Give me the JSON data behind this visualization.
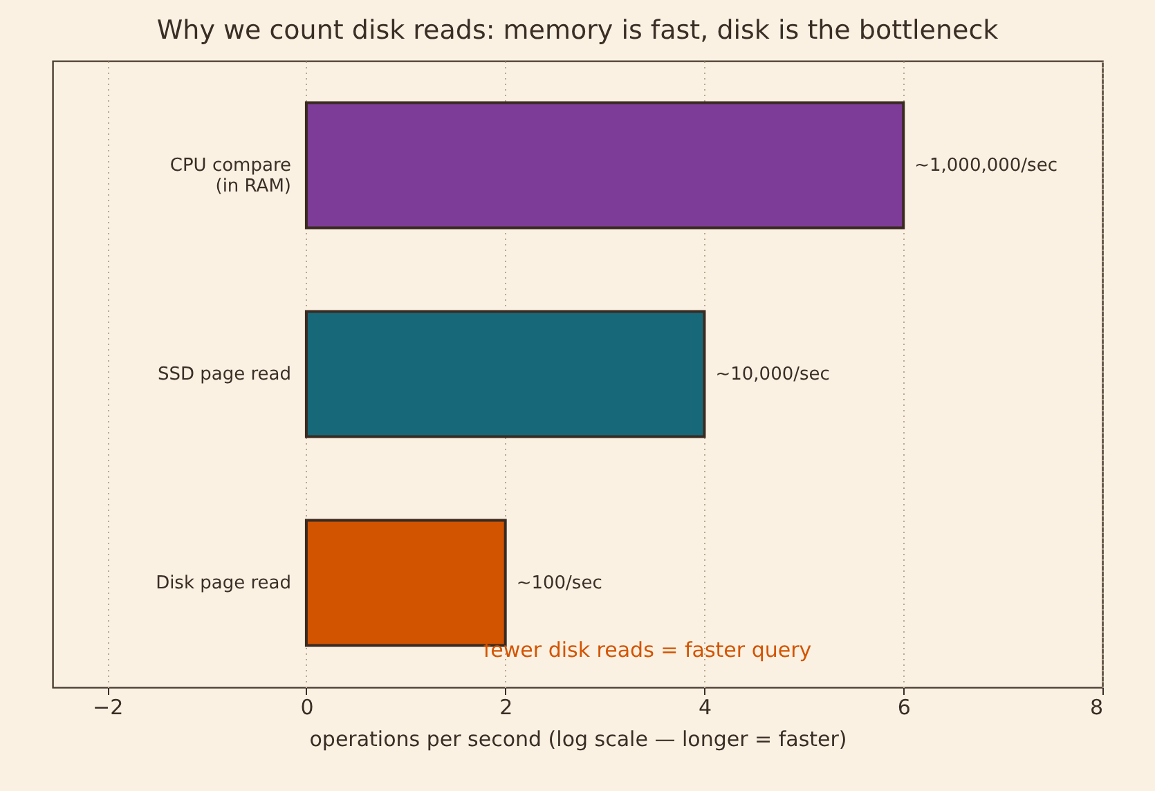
{
  "chart_data": {
    "type": "bar",
    "orientation": "horizontal",
    "title": "Why we count disk reads: memory is fast, disk is the bottleneck",
    "xlabel": "operations per second (log scale — longer = faster)",
    "categories": [
      "CPU compare\n(in RAM)",
      "SSD page read",
      "Disk page read"
    ],
    "values": [
      6,
      4,
      2
    ],
    "colors": [
      "#7d3c98",
      "#17697a",
      "#d35400"
    ],
    "xlim": [
      -2.55,
      8
    ],
    "xticks": [
      -2,
      0,
      2,
      4,
      6,
      8
    ],
    "grid": "x",
    "annotations": [
      {
        "text": "~1,000,000/sec",
        "x": 6,
        "y": "CPU compare\n(in RAM)"
      },
      {
        "text": "~10,000/sec",
        "x": 4,
        "y": "SSD page read"
      },
      {
        "text": "~100/sec",
        "x": 2,
        "y": "Disk page read"
      },
      "fewer disk reads = faster query"
    ]
  }
}
